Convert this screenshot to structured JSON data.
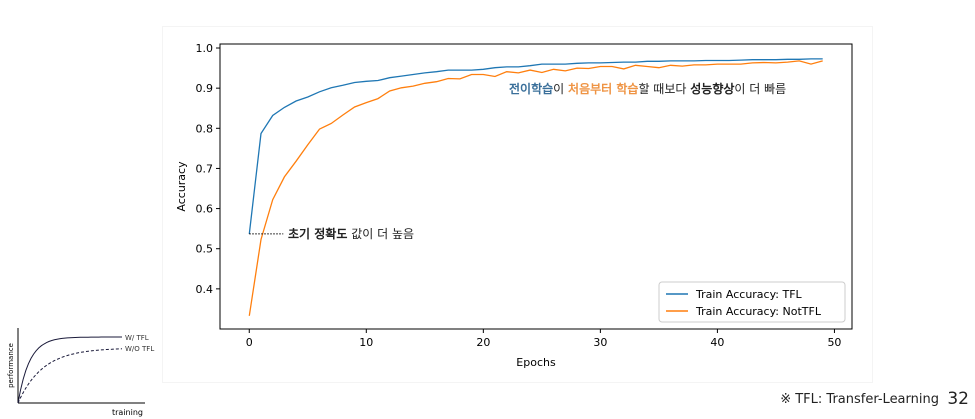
{
  "chart_data": [
    {
      "type": "line",
      "xlabel": "Epochs",
      "ylabel": "Accuracy",
      "xlim": [
        -2.5,
        51.5
      ],
      "ylim": [
        0.3,
        1.01
      ],
      "x_ticks": [
        0,
        10,
        20,
        30,
        40,
        50
      ],
      "y_ticks": [
        0.4,
        0.5,
        0.6,
        0.7,
        0.8,
        0.9,
        1.0
      ],
      "legend_position": "bottom-right",
      "grid": false,
      "series": [
        {
          "name": "Train Accuracy: TFL",
          "color": "#1f77b4",
          "x": [
            0,
            1,
            2,
            3,
            4,
            5,
            6,
            7,
            8,
            9,
            10,
            11,
            12,
            13,
            14,
            15,
            16,
            17,
            18,
            19,
            20,
            21,
            22,
            23,
            24,
            25,
            26,
            27,
            28,
            29,
            30,
            31,
            32,
            33,
            34,
            35,
            36,
            37,
            38,
            39,
            40,
            41,
            42,
            43,
            44,
            45,
            46,
            47,
            48,
            49
          ],
          "values": [
            0.537,
            0.787,
            0.832,
            0.852,
            0.868,
            0.878,
            0.891,
            0.901,
            0.907,
            0.914,
            0.917,
            0.919,
            0.926,
            0.93,
            0.934,
            0.938,
            0.941,
            0.945,
            0.945,
            0.945,
            0.947,
            0.951,
            0.953,
            0.953,
            0.956,
            0.96,
            0.96,
            0.96,
            0.962,
            0.963,
            0.963,
            0.964,
            0.965,
            0.965,
            0.967,
            0.967,
            0.968,
            0.968,
            0.968,
            0.969,
            0.969,
            0.969,
            0.97,
            0.971,
            0.971,
            0.971,
            0.972,
            0.972,
            0.973,
            0.973
          ]
        },
        {
          "name": "Train Accuracy: NotTFL",
          "color": "#ff7f0e",
          "x": [
            0,
            1,
            2,
            3,
            4,
            5,
            6,
            7,
            8,
            9,
            10,
            11,
            12,
            13,
            14,
            15,
            16,
            17,
            18,
            19,
            20,
            21,
            22,
            23,
            24,
            25,
            26,
            27,
            28,
            29,
            30,
            31,
            32,
            33,
            34,
            35,
            36,
            37,
            38,
            39,
            40,
            41,
            42,
            43,
            44,
            45,
            46,
            47,
            48,
            49
          ],
          "values": [
            0.333,
            0.523,
            0.622,
            0.679,
            0.718,
            0.759,
            0.798,
            0.812,
            0.833,
            0.853,
            0.864,
            0.874,
            0.893,
            0.901,
            0.905,
            0.912,
            0.916,
            0.924,
            0.923,
            0.934,
            0.934,
            0.929,
            0.941,
            0.938,
            0.945,
            0.939,
            0.947,
            0.943,
            0.95,
            0.949,
            0.954,
            0.954,
            0.948,
            0.957,
            0.954,
            0.951,
            0.957,
            0.955,
            0.958,
            0.958,
            0.96,
            0.96,
            0.96,
            0.963,
            0.964,
            0.963,
            0.965,
            0.968,
            0.96,
            0.968
          ]
        }
      ],
      "annotations": {
        "transfer_statement": [
          {
            "text": "전이학습",
            "color": "#3a6f9a",
            "bold": true
          },
          {
            "text": "이 ",
            "color": "#222222",
            "bold": false
          },
          {
            "text": "처음부터 학습",
            "color": "#ef9444",
            "bold": true
          },
          {
            "text": "할 때보다 ",
            "color": "#222222",
            "bold": false
          },
          {
            "text": "성능향상",
            "color": "#222222",
            "bold": true
          },
          {
            "text": "이 더 빠름",
            "color": "#222222",
            "bold": false
          }
        ],
        "initial_accuracy": [
          {
            "text": "초기 정확도",
            "color": "#222222",
            "bold": true
          },
          {
            "text": " 값이 더 높음",
            "color": "#222222",
            "bold": false
          }
        ]
      }
    },
    {
      "type": "line",
      "xlabel": "training",
      "ylabel": "performance",
      "series": [
        {
          "name": "W/ TFL",
          "color": "#1a1a3a",
          "style": "solid"
        },
        {
          "name": "W/O TFL",
          "color": "#1a1a3a",
          "style": "dashed"
        }
      ]
    }
  ],
  "footnote": "※ TFL: Transfer-Learning",
  "page_number": "32"
}
